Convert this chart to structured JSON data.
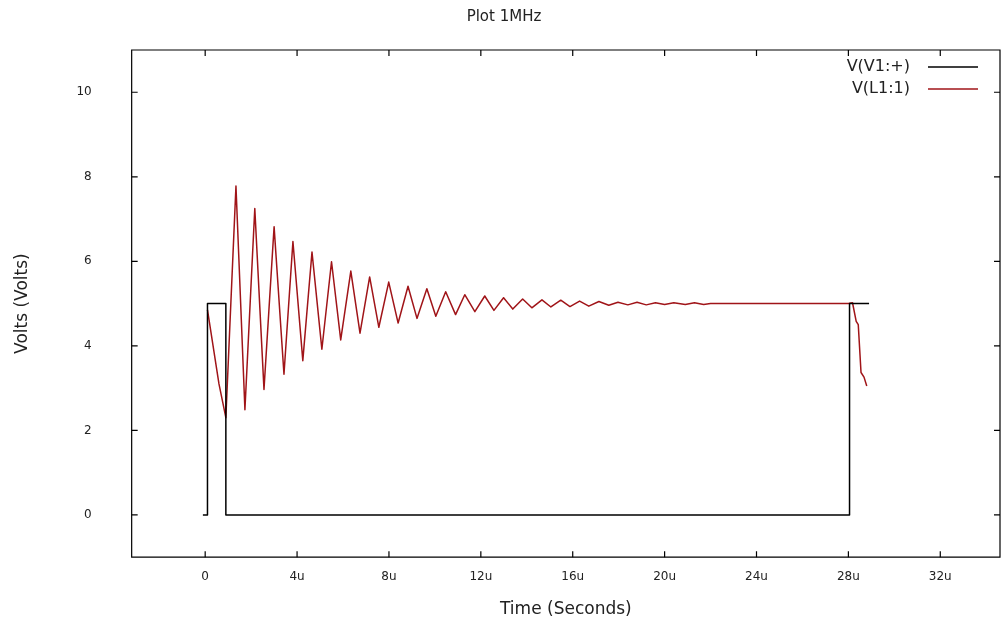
{
  "chart_data": {
    "type": "line",
    "title": "Plot 1MHz",
    "xlabel": "Time (Seconds)",
    "ylabel": "Volts (Volts)",
    "xlim": [
      -3.2,
      34.6
    ],
    "xticks": [
      0,
      {
        "value": 4,
        "label": "4u"
      },
      {
        "value": 8,
        "label": "8u"
      },
      {
        "value": 12,
        "label": "12u"
      },
      {
        "value": 16,
        "label": "16u"
      },
      {
        "value": 20,
        "label": "20u"
      },
      {
        "value": 24,
        "label": "24u"
      },
      {
        "value": 28,
        "label": "28u"
      },
      {
        "value": 32,
        "label": "32u"
      }
    ],
    "ylim": [
      -1,
      11
    ],
    "yticks": [
      0,
      2,
      4,
      6,
      8,
      10
    ],
    "grid": false,
    "legend": "top right",
    "marker": "none",
    "line_style": "solid",
    "series": [
      {
        "name": "V(V1:+)",
        "color": "#000000",
        "x": [
          -0.1,
          0.1,
          0.1,
          0.9,
          0.9,
          28.05,
          28.05,
          28.9
        ],
        "values": [
          0,
          0,
          5,
          5,
          0,
          0,
          5,
          5
        ]
      },
      {
        "name": "V(L1:1)",
        "color": "#a01418",
        "x": [
          0.1,
          0.2,
          0.6,
          0.9,
          1.34,
          1.73,
          2.16,
          2.56,
          3.0,
          3.43,
          3.82,
          4.25,
          4.65,
          5.08,
          5.5,
          5.9,
          6.34,
          6.74,
          7.16,
          7.56,
          7.99,
          8.4,
          8.83,
          9.22,
          9.65,
          10.04,
          10.47,
          10.9,
          11.3,
          11.74,
          12.17,
          12.57,
          12.99,
          13.39,
          13.82,
          14.22,
          14.66,
          15.05,
          15.48,
          15.88,
          16.3,
          16.7,
          17.14,
          17.57,
          17.97,
          18.4,
          18.8,
          19.2,
          19.6,
          20.0,
          20.4,
          20.9,
          21.3,
          21.7,
          22.0,
          28.0,
          28.18,
          28.34,
          28.43,
          28.55,
          28.68,
          28.8
        ],
        "values": [
          4.85,
          4.5,
          3.1,
          2.3,
          7.78,
          2.49,
          7.25,
          2.97,
          6.82,
          3.33,
          6.47,
          3.65,
          6.22,
          3.92,
          5.99,
          4.14,
          5.77,
          4.3,
          5.63,
          4.44,
          5.51,
          4.54,
          5.41,
          4.65,
          5.35,
          4.7,
          5.28,
          4.74,
          5.21,
          4.81,
          5.18,
          4.84,
          5.14,
          4.87,
          5.11,
          4.9,
          5.09,
          4.92,
          5.08,
          4.93,
          5.06,
          4.94,
          5.05,
          4.96,
          5.03,
          4.97,
          5.03,
          4.97,
          5.02,
          4.98,
          5.02,
          4.98,
          5.02,
          4.98,
          5.0,
          5.0,
          5.02,
          4.58,
          4.5,
          3.37,
          3.26,
          3.05
        ]
      }
    ]
  }
}
